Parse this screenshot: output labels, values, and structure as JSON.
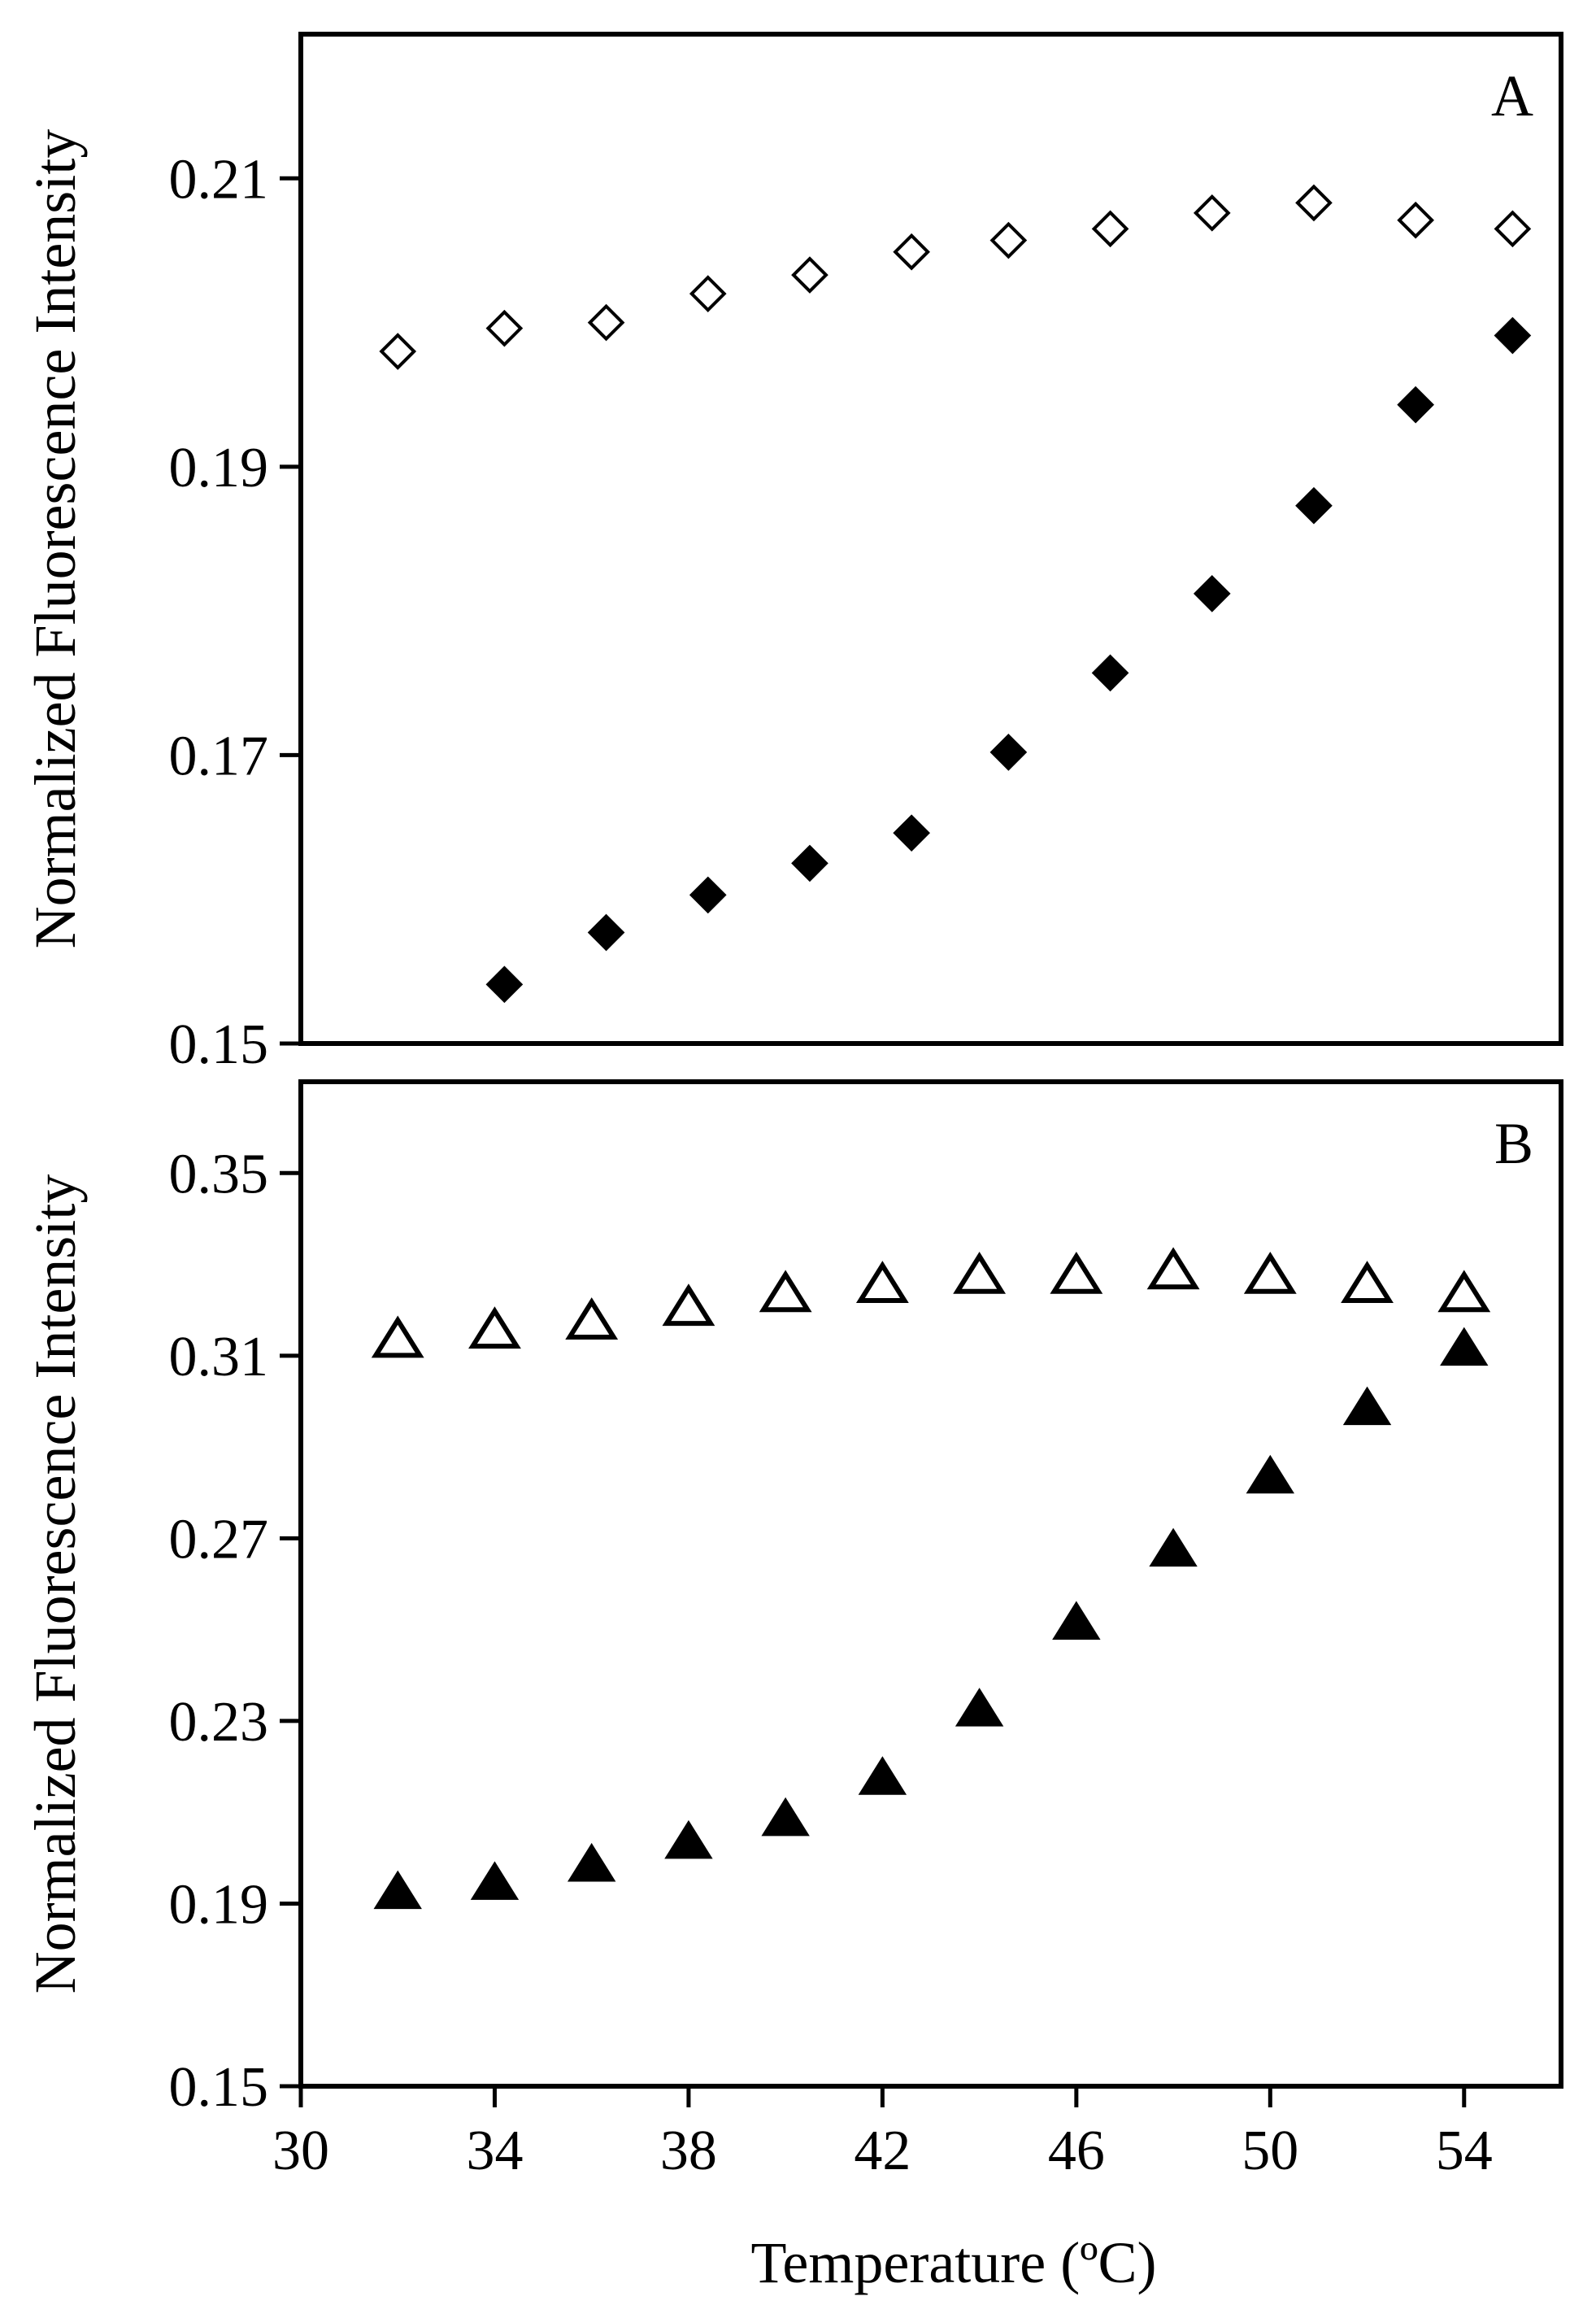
{
  "figure": {
    "xlabel": "Temperature (ºC)"
  },
  "chart_data": [
    {
      "type": "scatter",
      "panel_label": "A",
      "xlabel": "",
      "ylabel": "Normalized Fluorescence Intensity",
      "xlim": [
        30,
        56
      ],
      "ylim": [
        0.15,
        0.21
      ],
      "yticks": [
        0.15,
        0.17,
        0.19,
        0.21
      ],
      "ytick_labels": [
        "0.15",
        "0.17",
        "0.19",
        "0.21"
      ],
      "y_axis_max": 0.22,
      "grid": false,
      "series": [
        {
          "marker": "diamond-open",
          "x": [
            32,
            34.2,
            36.3,
            38.4,
            40.5,
            42.6,
            44.6,
            46.7,
            48.8,
            50.9,
            53,
            55
          ],
          "y": [
            0.198,
            0.1996,
            0.2,
            0.202,
            0.2033,
            0.2049,
            0.2057,
            0.2065,
            0.2076,
            0.2083,
            0.2071,
            0.2065
          ]
        },
        {
          "marker": "diamond-filled",
          "x": [
            34.2,
            36.3,
            38.4,
            40.5,
            42.6,
            44.6,
            46.7,
            48.8,
            50.9,
            53,
            55
          ],
          "y": [
            0.1541,
            0.1577,
            0.1603,
            0.1625,
            0.1646,
            0.1702,
            0.1757,
            0.1812,
            0.1873,
            0.1943,
            0.1991
          ]
        }
      ]
    },
    {
      "type": "scatter",
      "panel_label": "B",
      "xlabel": "Temperature (ºC)",
      "ylabel": "Normalized Fluorescence Intensity",
      "xlim": [
        30,
        56
      ],
      "ylim": [
        0.15,
        0.37
      ],
      "xticks": [
        30,
        34,
        38,
        42,
        46,
        50,
        54
      ],
      "xtick_labels": [
        "30",
        "34",
        "38",
        "42",
        "46",
        "50",
        "54"
      ],
      "yticks": [
        0.15,
        0.19,
        0.23,
        0.27,
        0.31,
        0.35
      ],
      "ytick_labels": [
        "0.15",
        "0.19",
        "0.23",
        "0.27",
        "0.31",
        "0.35"
      ],
      "grid": false,
      "series": [
        {
          "marker": "triangle-open",
          "x": [
            32,
            34,
            36,
            38,
            40,
            42,
            44,
            46,
            48,
            50,
            52,
            54
          ],
          "y": [
            0.313,
            0.315,
            0.317,
            0.32,
            0.323,
            0.325,
            0.327,
            0.327,
            0.328,
            0.327,
            0.325,
            0.323
          ]
        },
        {
          "marker": "triangle-filled",
          "x": [
            32,
            34,
            36,
            38,
            40,
            42,
            44,
            46,
            48,
            50,
            52,
            54
          ],
          "y": [
            0.192,
            0.194,
            0.198,
            0.203,
            0.208,
            0.217,
            0.232,
            0.251,
            0.267,
            0.283,
            0.298,
            0.311
          ]
        }
      ]
    }
  ]
}
